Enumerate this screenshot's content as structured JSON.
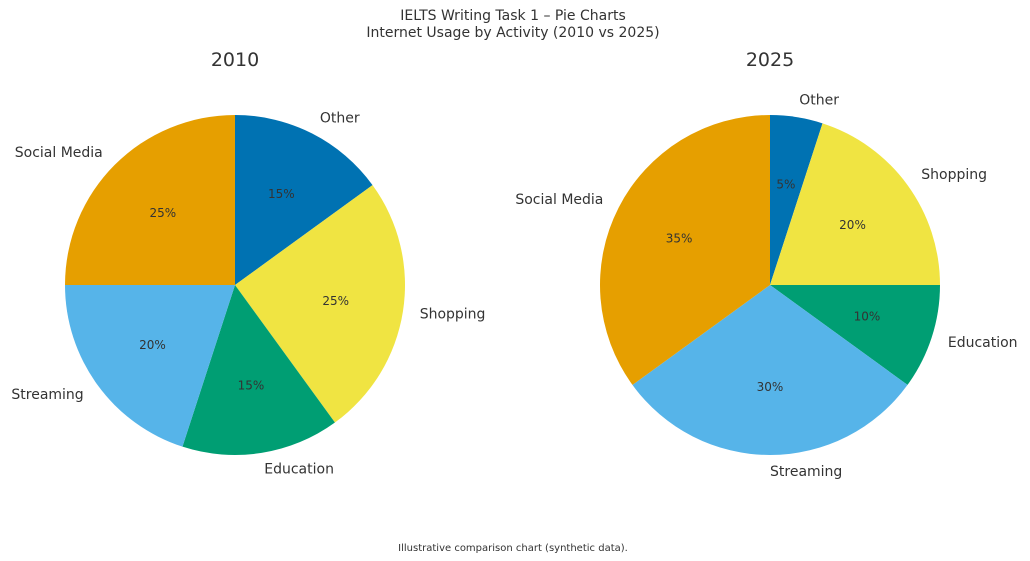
{
  "chart_data": {
    "type": "pie",
    "title": "IELTS Writing Task 1 – Pie Charts",
    "subtitle": "Internet Usage by Activity (2010 vs 2025)",
    "footnote": "Illustrative comparison chart (synthetic data).",
    "categories": [
      "Other",
      "Shopping",
      "Education",
      "Streaming",
      "Social Media"
    ],
    "colors": {
      "Other": "#0072B2",
      "Shopping": "#F0E442",
      "Education": "#009E73",
      "Streaming": "#56B4E9",
      "Social Media": "#E69F00"
    },
    "pies": [
      {
        "title": "2010",
        "values": [
          15,
          25,
          15,
          20,
          25
        ],
        "labels": [
          "15%",
          "25%",
          "15%",
          "20%",
          "25%"
        ]
      },
      {
        "title": "2025",
        "values": [
          5,
          20,
          10,
          30,
          35
        ],
        "labels": [
          "5%",
          "20%",
          "10%",
          "30%",
          "35%"
        ]
      }
    ]
  }
}
